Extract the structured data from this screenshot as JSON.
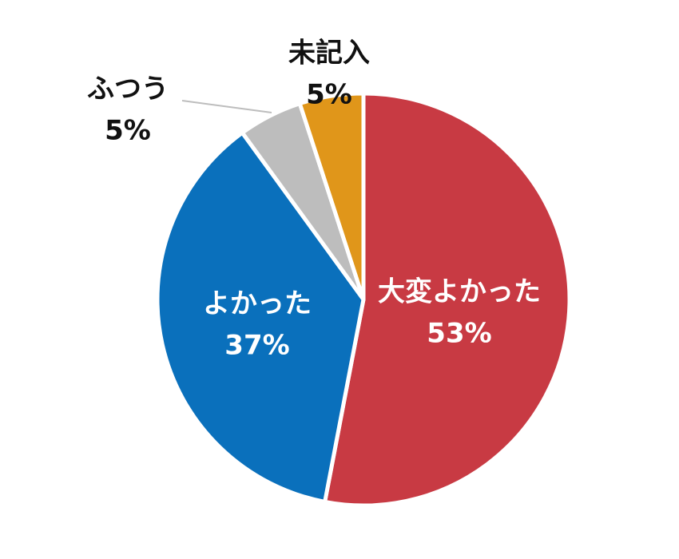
{
  "chart_data": {
    "type": "pie",
    "categories": [
      "大変よかった",
      "よかった",
      "ふつう",
      "未記入"
    ],
    "values": [
      53,
      37,
      5,
      5
    ],
    "value_labels": [
      "53%",
      "37%",
      "5%",
      "5%"
    ],
    "colors": [
      "#c83a43",
      "#0a70bc",
      "#bdbdbd",
      "#e0961a"
    ]
  }
}
